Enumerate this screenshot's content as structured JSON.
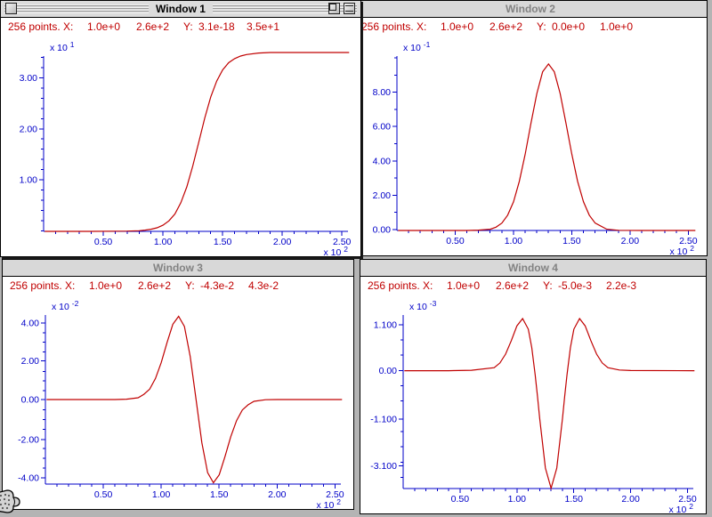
{
  "desktop": {
    "bg": "#b4b4b4"
  },
  "colors": {
    "accent_red": "#c00000",
    "axis_blue": "#0000c8",
    "titlebar_active_bg": "#dcdcdc",
    "titlebar_inactive_bg": "#d8d8d8",
    "inactive_title_text": "#828282"
  },
  "windows": [
    {
      "title": "Window 1",
      "active": true,
      "status": {
        "points": "256 points.",
        "x_label": "X:",
        "x_min": "1.0e+0",
        "x_max": "2.6e+2",
        "y_label": "Y:",
        "y_min": "3.1e-18",
        "y_max": "3.5e+1"
      }
    },
    {
      "title": "Window 2",
      "active": false,
      "status": {
        "points": "256 points.",
        "x_label": "X:",
        "x_min": "1.0e+0",
        "x_max": "2.6e+2",
        "y_label": "Y:",
        "y_min": "0.0e+0",
        "y_max": "1.0e+0"
      }
    },
    {
      "title": "Window 3",
      "active": false,
      "status": {
        "points": "256 points.",
        "x_label": "X:",
        "x_min": "1.0e+0",
        "x_max": "2.6e+2",
        "y_label": "Y:",
        "y_min": "-4.3e-2",
        "y_max": "4.3e-2"
      }
    },
    {
      "title": "Window 4",
      "active": false,
      "status": {
        "points": "256 points.",
        "x_label": "X:",
        "x_min": "1.0e+0",
        "x_max": "2.6e+2",
        "y_label": "Y:",
        "y_min": "-5.0e-3",
        "y_max": "2.2e-3"
      }
    }
  ],
  "chart_data": [
    {
      "type": "line",
      "title": "Window 1",
      "color": "#c00000",
      "y_scale_label": "x 10",
      "y_scale_exp": "1",
      "x_scale_label": "x 10",
      "x_scale_exp": "2",
      "y_ticks": [
        {
          "label": "3.00",
          "f": 0.124
        },
        {
          "label": "2.00",
          "f": 0.415
        },
        {
          "label": "1.00",
          "f": 0.705
        }
      ],
      "y_minor_step_f": 0.0582,
      "x_ticks": [
        {
          "label": "0.50",
          "f": 0.196
        },
        {
          "label": "1.00",
          "f": 0.392
        },
        {
          "label": "1.50",
          "f": 0.588
        },
        {
          "label": "2.00",
          "f": 0.784
        },
        {
          "label": "2.50",
          "f": 0.98
        }
      ],
      "x_minor_step_f": 0.0392,
      "x_domain": [
        0,
        255
      ],
      "y_domain_top": 3.43,
      "y_domain_bottom": 0,
      "x": [
        1,
        40,
        70,
        80,
        85,
        90,
        95,
        100,
        105,
        110,
        115,
        120,
        125,
        130,
        135,
        140,
        145,
        150,
        155,
        160,
        165,
        170,
        180,
        190,
        210,
        230,
        256
      ],
      "y": [
        0,
        0,
        0.005,
        0.013,
        0.025,
        0.041,
        0.07,
        0.12,
        0.205,
        0.34,
        0.56,
        0.87,
        1.28,
        1.75,
        2.22,
        2.63,
        2.94,
        3.16,
        3.3,
        3.38,
        3.43,
        3.46,
        3.49,
        3.5,
        3.5,
        3.5,
        3.5
      ]
    },
    {
      "type": "line",
      "title": "Window 2",
      "color": "#c00000",
      "y_scale_label": "x 10",
      "y_scale_exp": "-1",
      "x_scale_label": "x 10",
      "x_scale_exp": "2",
      "y_ticks": [
        {
          "label": "8.00",
          "f": 0.207
        },
        {
          "label": "6.00",
          "f": 0.404
        },
        {
          "label": "4.00",
          "f": 0.601
        },
        {
          "label": "2.00",
          "f": 0.798
        },
        {
          "label": "0.00",
          "f": 0.995
        }
      ],
      "y_minor_step_f": 0.0985,
      "x_ticks": [
        {
          "label": "0.50",
          "f": 0.196
        },
        {
          "label": "1.00",
          "f": 0.392
        },
        {
          "label": "1.50",
          "f": 0.588
        },
        {
          "label": "2.00",
          "f": 0.784
        },
        {
          "label": "2.50",
          "f": 0.98
        }
      ],
      "x_minor_step_f": 0.0392,
      "x_domain": [
        0,
        255
      ],
      "y_domain_top": 10.16,
      "y_domain_bottom": 0,
      "x": [
        1,
        40,
        60,
        70,
        80,
        85,
        90,
        95,
        100,
        105,
        110,
        115,
        120,
        125,
        130,
        135,
        140,
        145,
        150,
        155,
        160,
        165,
        170,
        180,
        190,
        210,
        256
      ],
      "y": [
        0,
        0,
        0,
        0.02,
        0.07,
        0.19,
        0.43,
        0.89,
        1.67,
        2.86,
        4.44,
        6.25,
        7.98,
        9.24,
        9.7,
        9.24,
        7.98,
        6.25,
        4.44,
        2.86,
        1.67,
        0.89,
        0.43,
        0.07,
        0.01,
        0,
        0
      ]
    },
    {
      "type": "line",
      "title": "Window 3",
      "color": "#c00000",
      "y_scale_label": "x 10",
      "y_scale_exp": "-2",
      "x_scale_label": "x 10",
      "x_scale_exp": "2",
      "y_ticks": [
        {
          "label": "4.00",
          "f": 0.047
        },
        {
          "label": "2.00",
          "f": 0.271
        },
        {
          "label": "0.00",
          "f": 0.5
        },
        {
          "label": "-2.00",
          "f": 0.738
        },
        {
          "label": "-4.00",
          "f": 0.963
        }
      ],
      "y_minor_step_f": 0.0572,
      "x_ticks": [
        {
          "label": "0.50",
          "f": 0.196
        },
        {
          "label": "1.00",
          "f": 0.392
        },
        {
          "label": "1.50",
          "f": 0.588
        },
        {
          "label": "2.00",
          "f": 0.784
        },
        {
          "label": "2.50",
          "f": 0.98
        }
      ],
      "x_minor_step_f": 0.0392,
      "x_domain": [
        0,
        255
      ],
      "y_domain_top": 4.37,
      "y_domain_bottom": -4.37,
      "x": [
        1,
        40,
        60,
        70,
        80,
        85,
        90,
        95,
        100,
        105,
        110,
        115,
        120,
        125,
        130,
        135,
        140,
        145,
        150,
        155,
        160,
        165,
        170,
        175,
        180,
        190,
        200,
        256
      ],
      "y": [
        0,
        0,
        0,
        0.02,
        0.09,
        0.27,
        0.54,
        1.09,
        1.92,
        2.95,
        3.89,
        4.3,
        3.78,
        2.23,
        0,
        -2.23,
        -3.78,
        -4.3,
        -3.89,
        -2.95,
        -1.92,
        -1.09,
        -0.54,
        -0.27,
        -0.09,
        -0.01,
        0,
        0
      ]
    },
    {
      "type": "line",
      "title": "Window 4",
      "color": "#c00000",
      "y_scale_label": "x 10",
      "y_scale_exp": "-3",
      "x_scale_label": "x 10",
      "x_scale_exp": "2",
      "y_ticks": [
        {
          "label": "1.100",
          "f": 0.056
        },
        {
          "label": "0.00",
          "f": 0.321
        },
        {
          "label": "-1.100",
          "f": 0.6
        },
        {
          "label": "-3.100",
          "f": 0.87
        }
      ],
      "y_minor_step_f": 0.088,
      "x_ticks": [
        {
          "label": "0.50",
          "f": 0.196
        },
        {
          "label": "1.00",
          "f": 0.392
        },
        {
          "label": "1.50",
          "f": 0.588
        },
        {
          "label": "2.00",
          "f": 0.784
        },
        {
          "label": "2.50",
          "f": 0.98
        }
      ],
      "x_minor_step_f": 0.0392,
      "x_domain": [
        0,
        255
      ],
      "y_domain_top": 2.37,
      "y_domain_bottom": -5.01,
      "x": [
        1,
        40,
        60,
        80,
        85,
        90,
        95,
        100,
        105,
        110,
        113,
        116,
        118,
        120,
        125,
        130,
        135,
        140,
        142,
        144,
        147,
        150,
        155,
        160,
        165,
        170,
        175,
        180,
        190,
        200,
        256
      ],
      "y": [
        0,
        0,
        0.02,
        0.13,
        0.33,
        0.71,
        1.28,
        1.91,
        2.22,
        1.77,
        0.98,
        -0.17,
        -1.08,
        -2.03,
        -4.14,
        -5.0,
        -4.14,
        -2.03,
        -1.08,
        -0.17,
        0.98,
        1.77,
        2.22,
        1.91,
        1.28,
        0.71,
        0.33,
        0.13,
        0.03,
        0.01,
        0
      ]
    }
  ]
}
